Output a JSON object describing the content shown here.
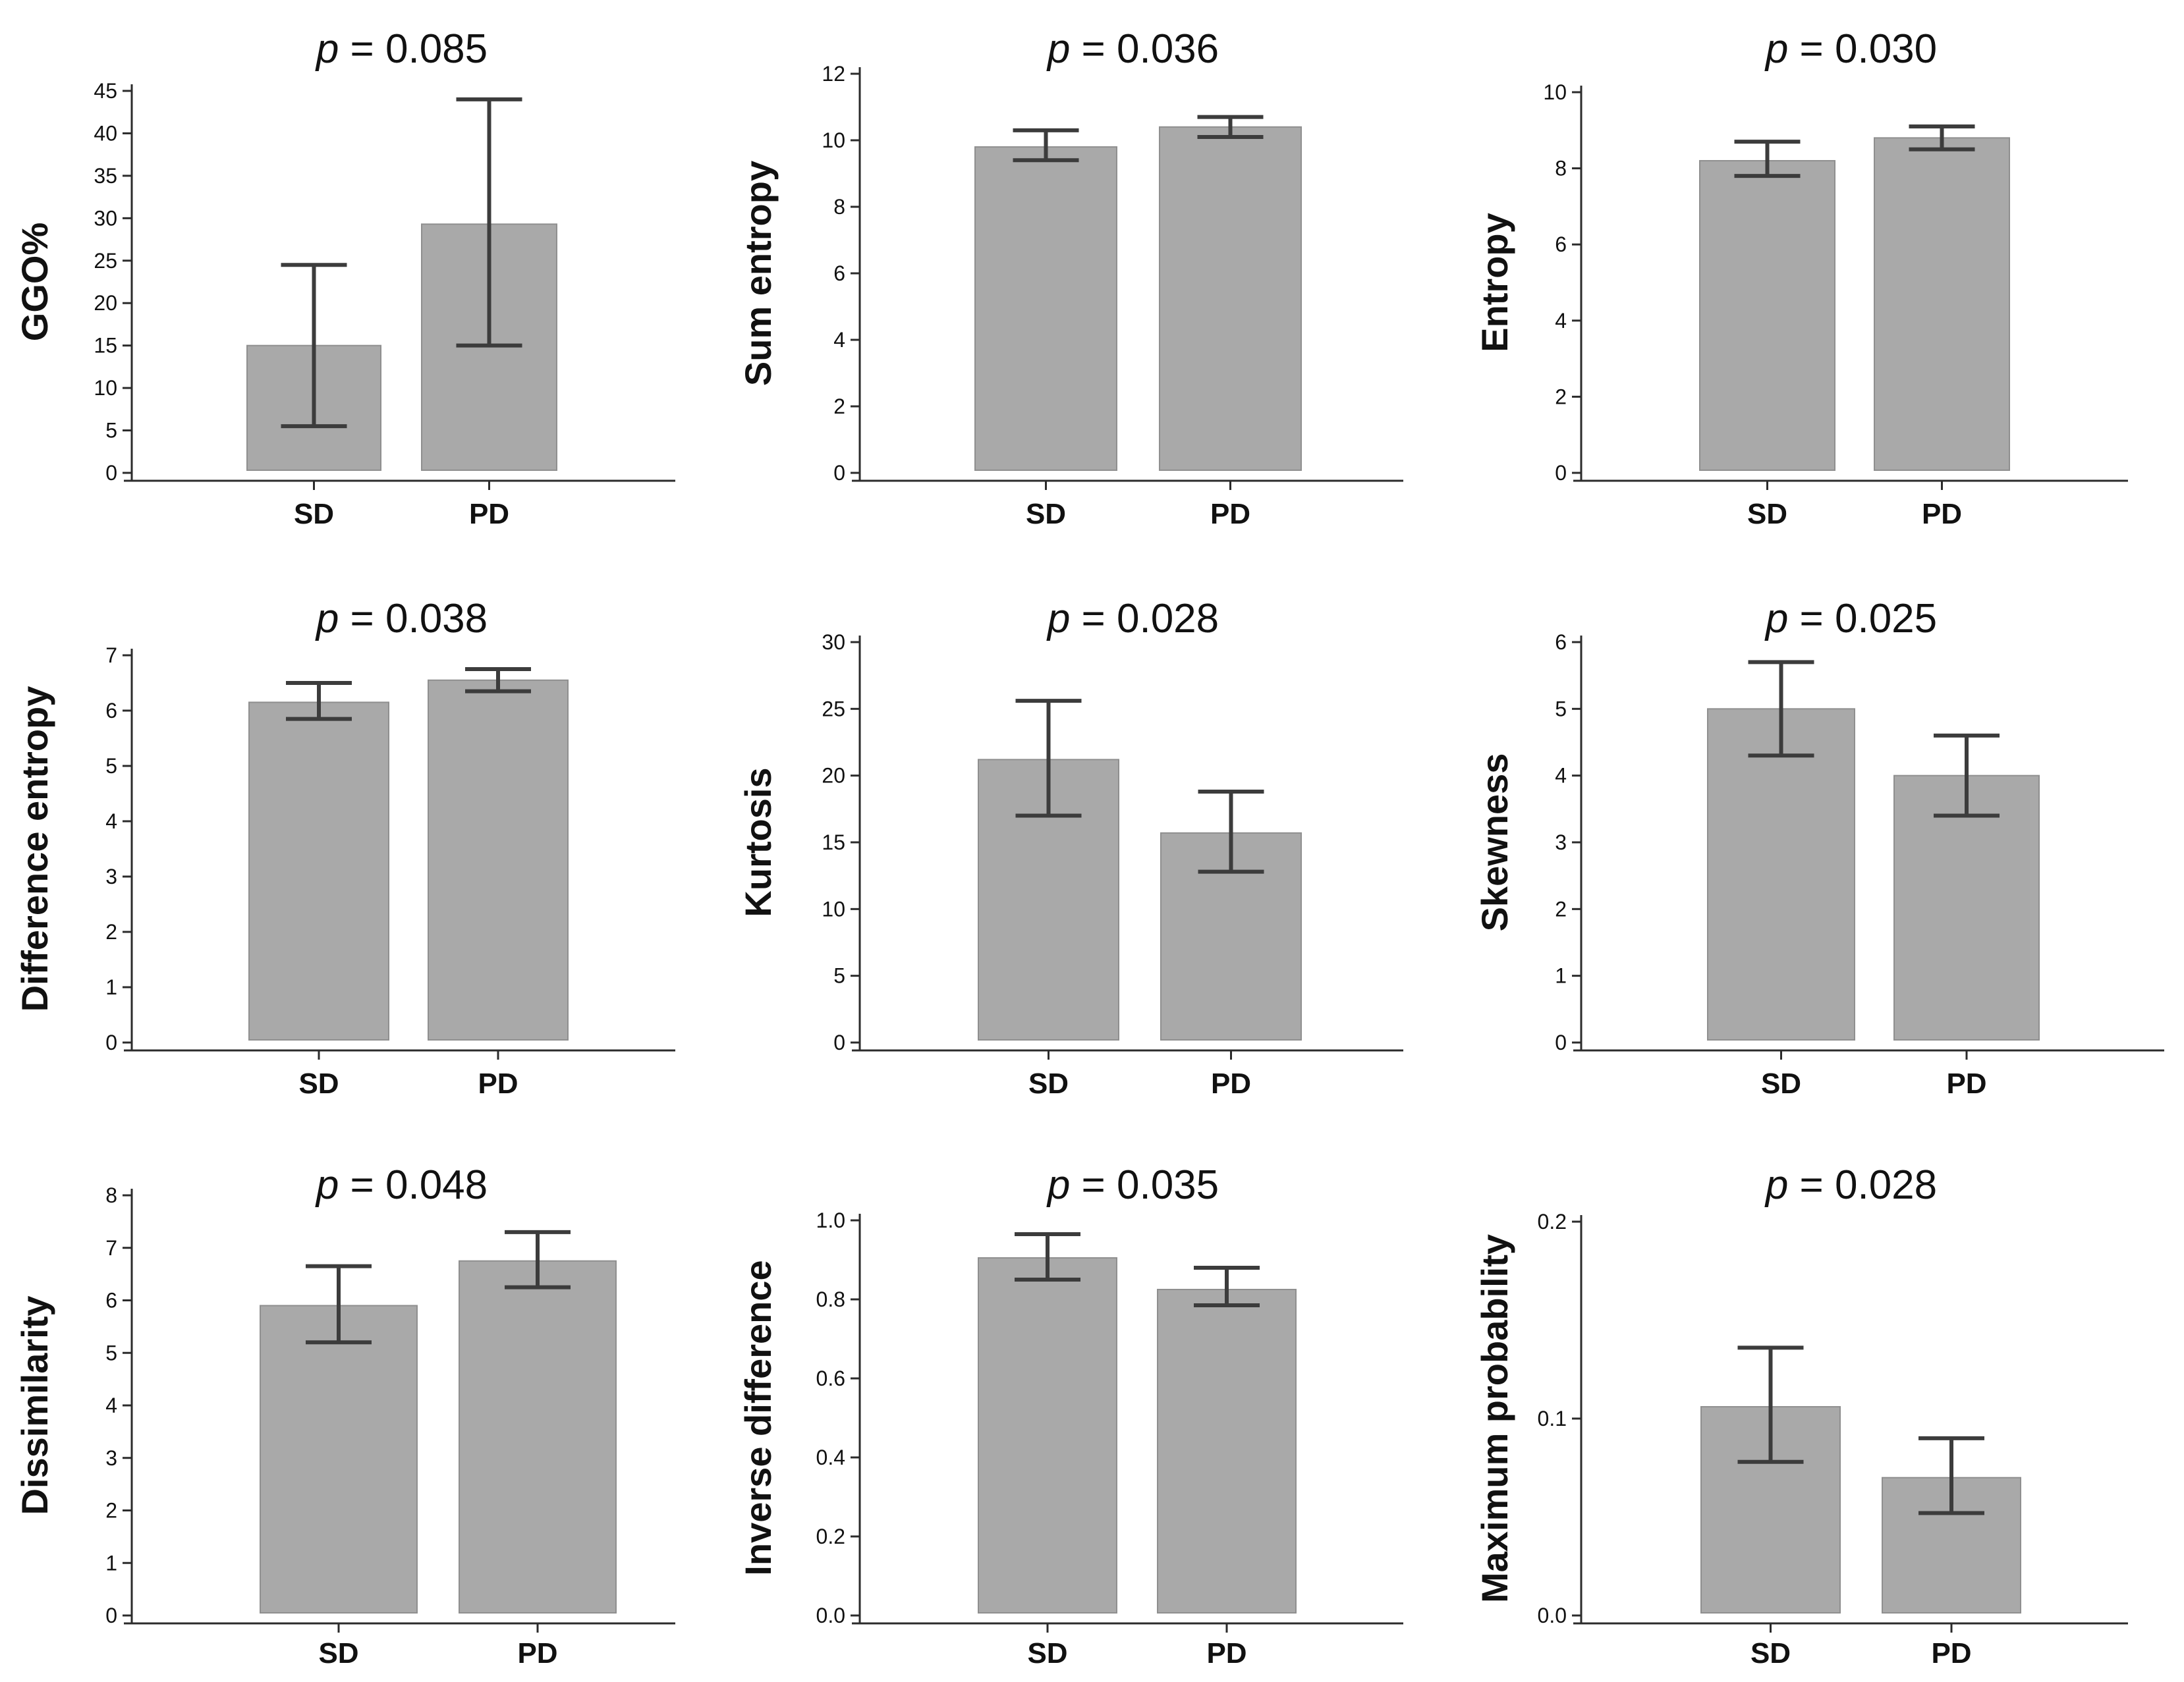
{
  "chart_data": [
    {
      "type": "bar",
      "p_label": "p",
      "p_value": "= 0.085",
      "ylabel": "GGO%",
      "categories": [
        "SD",
        "PD"
      ],
      "values": [
        15,
        29.3
      ],
      "error_low": [
        5.5,
        15
      ],
      "error_high": [
        24.5,
        44
      ],
      "ylim": [
        0,
        45
      ],
      "yticks": [
        "0",
        "5",
        "10",
        "15",
        "20",
        "25",
        "30",
        "35",
        "40",
        "45"
      ],
      "tickvals": [
        0,
        5,
        10,
        15,
        20,
        25,
        30,
        35,
        40,
        45
      ]
    },
    {
      "type": "bar",
      "p_label": "p",
      "p_value": "= 0.036",
      "ylabel": "Sum entropy",
      "categories": [
        "SD",
        "PD"
      ],
      "values": [
        9.8,
        10.4
      ],
      "error_low": [
        9.4,
        10.1
      ],
      "error_high": [
        10.3,
        10.7
      ],
      "ylim": [
        0,
        12
      ],
      "yticks": [
        "0",
        "2",
        "4",
        "6",
        "8",
        "10",
        "12"
      ],
      "tickvals": [
        0,
        2,
        4,
        6,
        8,
        10,
        12
      ]
    },
    {
      "type": "bar",
      "p_label": "p",
      "p_value": "= 0.030",
      "ylabel": "Entropy",
      "categories": [
        "SD",
        "PD"
      ],
      "values": [
        8.2,
        8.8
      ],
      "error_low": [
        7.8,
        8.5
      ],
      "error_high": [
        8.7,
        9.1
      ],
      "ylim": [
        0,
        10
      ],
      "yticks": [
        "0",
        "2",
        "4",
        "6",
        "8",
        "10"
      ],
      "tickvals": [
        0,
        2,
        4,
        6,
        8,
        10
      ]
    },
    {
      "type": "bar",
      "p_label": "p",
      "p_value": "= 0.038",
      "ylabel": "Difference entropy",
      "categories": [
        "SD",
        "PD"
      ],
      "values": [
        6.15,
        6.55
      ],
      "error_low": [
        5.85,
        6.35
      ],
      "error_high": [
        6.5,
        6.75
      ],
      "ylim": [
        0,
        7
      ],
      "yticks": [
        "0",
        "1",
        "2",
        "3",
        "4",
        "5",
        "6",
        "7"
      ],
      "tickvals": [
        0,
        1,
        2,
        3,
        4,
        5,
        6,
        7
      ]
    },
    {
      "type": "bar",
      "p_label": "p",
      "p_value": "= 0.028",
      "ylabel": "Kurtosis",
      "categories": [
        "SD",
        "PD"
      ],
      "values": [
        21.2,
        15.7
      ],
      "error_low": [
        17,
        12.8
      ],
      "error_high": [
        25.6,
        18.8
      ],
      "ylim": [
        0,
        30
      ],
      "yticks": [
        "0",
        "5",
        "10",
        "15",
        "20",
        "25",
        "30"
      ],
      "tickvals": [
        0,
        5,
        10,
        15,
        20,
        25,
        30
      ]
    },
    {
      "type": "bar",
      "p_label": "p",
      "p_value": "= 0.025",
      "ylabel": "Skewness",
      "categories": [
        "SD",
        "PD"
      ],
      "values": [
        5,
        4
      ],
      "error_low": [
        4.3,
        3.4
      ],
      "error_high": [
        5.7,
        4.6
      ],
      "ylim": [
        0,
        6
      ],
      "yticks": [
        "0",
        "1",
        "2",
        "3",
        "4",
        "5",
        "6"
      ],
      "tickvals": [
        0,
        1,
        2,
        3,
        4,
        5,
        6
      ]
    },
    {
      "type": "bar",
      "p_label": "p",
      "p_value": "= 0.048",
      "ylabel": "Dissimilarity",
      "categories": [
        "SD",
        "PD"
      ],
      "values": [
        5.9,
        6.75
      ],
      "error_low": [
        5.2,
        6.25
      ],
      "error_high": [
        6.65,
        7.3
      ],
      "ylim": [
        0,
        8
      ],
      "yticks": [
        "0",
        "1",
        "2",
        "3",
        "4",
        "5",
        "6",
        "7",
        "8"
      ],
      "tickvals": [
        0,
        1,
        2,
        3,
        4,
        5,
        6,
        7,
        8
      ]
    },
    {
      "type": "bar",
      "p_label": "p",
      "p_value": "= 0.035",
      "ylabel": "Inverse difference",
      "categories": [
        "SD",
        "PD"
      ],
      "values": [
        0.905,
        0.825
      ],
      "error_low": [
        0.85,
        0.785
      ],
      "error_high": [
        0.965,
        0.88
      ],
      "ylim": [
        0,
        1
      ],
      "yticks": [
        "0.0",
        "0.2",
        "0.4",
        "0.6",
        "0.8",
        "1.0"
      ],
      "tickvals": [
        0,
        0.2,
        0.4,
        0.6,
        0.8,
        1.0
      ]
    },
    {
      "type": "bar",
      "p_label": "p",
      "p_value": "= 0.028",
      "ylabel": "Maximum probability",
      "categories": [
        "SD",
        "PD"
      ],
      "values": [
        0.106,
        0.07
      ],
      "error_low": [
        0.078,
        0.052
      ],
      "error_high": [
        0.136,
        0.09
      ],
      "ylim": [
        0,
        0.2
      ],
      "yticks": [
        "0.0",
        "0.1",
        "0.2"
      ],
      "tickvals": [
        0,
        0.1,
        0.2
      ]
    }
  ],
  "colors": {
    "bar": "#a9a9a9",
    "bar_edge": "#8f8f8f",
    "axis": "#2b2b2b",
    "error": "#3c3c3c"
  }
}
